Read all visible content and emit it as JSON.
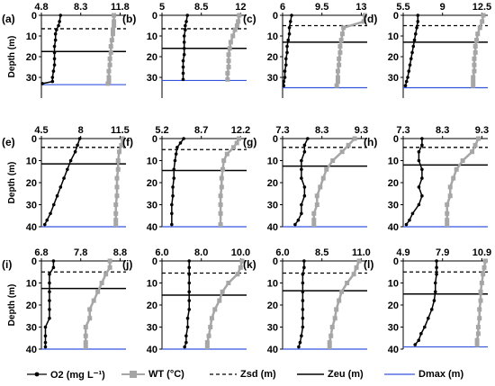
{
  "legend": {
    "o2": "O₂ (mg L⁻¹)",
    "wt": "WT (°C)",
    "zsd": "Zₛₑ (m)",
    "zeu": "Zₑᵤ (m)",
    "dmax": "Dₘₐₓ (m)"
  },
  "legend_labels": {
    "o2": "O2 (mg L⁻¹)",
    "wt": "WT (°C)",
    "zsd": "Zsd (m)",
    "zeu": "Zeu (m)",
    "dmax": "Dmax (m)"
  },
  "colors": {
    "o2": "#000000",
    "wt": "#a6a6a6",
    "zsd": "#000000",
    "zeu": "#000000",
    "dmax": "#3355dd"
  },
  "y_axis_label": "Depth (m)",
  "chart_data": [
    {
      "panel": "(a)",
      "type": "line",
      "xticks": [
        "4.8",
        "8.3",
        "11.8"
      ],
      "xlim": [
        4.8,
        13.2
      ],
      "ylim": [
        0,
        40
      ],
      "ylabel": "Depth (m)",
      "zsd": 6.5,
      "zeu": 17.5,
      "dmax": 33.5,
      "yticks": [
        "0",
        "10",
        "20",
        "30"
      ],
      "series": [
        {
          "name": "O2 (mg L⁻¹)",
          "x": [
            6.7,
            6.6,
            6.5,
            6.3,
            6.2,
            6.2,
            6.1,
            6.1,
            6.1,
            6.1,
            6.0,
            5.9,
            5.9,
            4.9
          ],
          "y": [
            0,
            3,
            5,
            7,
            9,
            12,
            15,
            18,
            21,
            24,
            27,
            30,
            32,
            33
          ]
        },
        {
          "name": "WT (°C)",
          "x": [
            12.0,
            12.0,
            12.0,
            11.9,
            11.9,
            11.8,
            11.7,
            11.7,
            11.6,
            11.6,
            11.5,
            11.5,
            11.5,
            11.4
          ],
          "y": [
            0,
            3,
            5,
            7,
            9,
            12,
            15,
            18,
            21,
            24,
            27,
            30,
            32,
            33
          ]
        }
      ]
    },
    {
      "panel": "(b)",
      "type": "line",
      "xticks": [
        "5",
        "8.5",
        "12"
      ],
      "xlim": [
        5,
        13
      ],
      "ylim": [
        0,
        40
      ],
      "ylabel": "",
      "zsd": 6.5,
      "zeu": 16,
      "dmax": 31.5,
      "yticks": [
        "0",
        "10",
        "20",
        "30"
      ],
      "series": [
        {
          "name": "O2 (mg L⁻¹)",
          "x": [
            7.4,
            7.3,
            7.2,
            7.2,
            7.1,
            7.1,
            7.1,
            7.1,
            7.0,
            7.0,
            7.0,
            7.0
          ],
          "y": [
            0,
            3,
            5,
            7,
            10,
            13,
            16,
            19,
            22,
            25,
            28,
            31
          ]
        },
        {
          "name": "WT (°C)",
          "x": [
            12.3,
            12.2,
            12.1,
            11.9,
            11.7,
            11.5,
            11.4,
            11.3,
            11.3,
            11.3,
            11.2,
            11.2
          ],
          "y": [
            0,
            3,
            5,
            7,
            10,
            13,
            16,
            19,
            22,
            25,
            28,
            31
          ]
        }
      ]
    },
    {
      "panel": "(c)",
      "type": "line",
      "xticks": [
        "6",
        "9.5",
        "13"
      ],
      "xlim": [
        6,
        13.5
      ],
      "ylim": [
        0,
        40
      ],
      "ylabel": "",
      "zsd": 5,
      "zeu": 13,
      "dmax": 35,
      "yticks": [
        "0",
        "10",
        "20",
        "30"
      ],
      "series": [
        {
          "name": "O2 (mg L⁻¹)",
          "x": [
            6.8,
            6.7,
            6.6,
            6.6,
            6.5,
            6.4,
            6.4,
            6.3,
            6.3,
            6.2,
            6.2,
            6.1,
            6.1
          ],
          "y": [
            0,
            3,
            6,
            9,
            12,
            15,
            18,
            21,
            24,
            27,
            30,
            32,
            34
          ]
        },
        {
          "name": "WT (°C)",
          "x": [
            13.3,
            13.2,
            11.4,
            11.3,
            11.2,
            11.1,
            11.1,
            11.0,
            11.0,
            10.9,
            10.9,
            10.9,
            10.8
          ],
          "y": [
            0,
            3,
            6,
            9,
            12,
            15,
            18,
            21,
            24,
            27,
            30,
            32,
            34
          ]
        }
      ]
    },
    {
      "panel": "(d)",
      "type": "line",
      "xticks": [
        "5.5",
        "9",
        "12.5"
      ],
      "xlim": [
        5.5,
        13
      ],
      "ylim": [
        0,
        40
      ],
      "ylabel": "",
      "zsd": 5,
      "zeu": 13,
      "dmax": 35,
      "yticks": [
        "0",
        "10",
        "20",
        "30"
      ],
      "series": [
        {
          "name": "O2 (mg L⁻¹)",
          "x": [
            6.8,
            6.8,
            6.7,
            6.6,
            6.5,
            6.4,
            6.3,
            6.2,
            6.1,
            6.0,
            5.9,
            5.8,
            5.7
          ],
          "y": [
            0,
            3,
            6,
            9,
            12,
            15,
            18,
            21,
            24,
            27,
            30,
            32,
            34
          ]
        },
        {
          "name": "WT (°C)",
          "x": [
            12.6,
            12.5,
            12.3,
            12.1,
            12.0,
            11.9,
            11.9,
            11.8,
            11.8,
            11.8,
            11.7,
            11.7,
            11.7
          ],
          "y": [
            0,
            3,
            6,
            9,
            12,
            15,
            18,
            21,
            24,
            27,
            30,
            32,
            34
          ]
        }
      ]
    },
    {
      "panel": "(e)",
      "type": "line",
      "xticks": [
        "4.5",
        "8",
        "11.5"
      ],
      "xlim": [
        4.5,
        12
      ],
      "ylim": [
        0,
        40
      ],
      "ylabel": "Depth (m)",
      "zsd": 4,
      "zeu": 11.5,
      "dmax": 40,
      "yticks": [
        "0",
        "10",
        "20",
        "30",
        "40"
      ],
      "series": [
        {
          "name": "O2 (mg L⁻¹)",
          "x": [
            7.9,
            7.7,
            7.5,
            7.1,
            6.8,
            6.5,
            6.2,
            5.9,
            5.6,
            5.3,
            5.0,
            4.8
          ],
          "y": [
            0,
            3,
            6,
            10,
            14,
            18,
            22,
            26,
            30,
            34,
            37,
            39
          ]
        },
        {
          "name": "WT (°C)",
          "x": [
            11.7,
            11.6,
            11.4,
            11.3,
            11.3,
            11.2,
            11.2,
            11.2,
            11.1,
            11.1,
            11.1,
            11.1
          ],
          "y": [
            0,
            3,
            6,
            10,
            14,
            18,
            22,
            26,
            30,
            34,
            37,
            39
          ]
        }
      ]
    },
    {
      "panel": "(f)",
      "type": "line",
      "xticks": [
        "5.2",
        "8.7",
        "12.2"
      ],
      "xlim": [
        5.2,
        13
      ],
      "ylim": [
        0,
        40
      ],
      "ylabel": "",
      "zsd": 5,
      "zeu": 14.5,
      "dmax": 40,
      "yticks": [
        "0",
        "10",
        "20",
        "30",
        "40"
      ],
      "series": [
        {
          "name": "O2 (mg L⁻¹)",
          "x": [
            7.2,
            6.9,
            6.6,
            6.5,
            6.4,
            6.3,
            6.3,
            6.2,
            6.2,
            6.1,
            6.1,
            6.1
          ],
          "y": [
            0,
            2,
            4,
            7,
            10,
            14,
            18,
            22,
            26,
            30,
            34,
            39
          ]
        },
        {
          "name": "WT (°C)",
          "x": [
            12.3,
            12.1,
            11.8,
            11.2,
            10.9,
            10.8,
            10.7,
            10.7,
            10.6,
            10.6,
            10.6,
            10.6
          ],
          "y": [
            0,
            2,
            4,
            7,
            10,
            14,
            18,
            22,
            26,
            30,
            34,
            39
          ]
        }
      ]
    },
    {
      "panel": "(g)",
      "type": "line",
      "xticks": [
        "7.3",
        "8.3",
        "9.3"
      ],
      "xlim": [
        7.3,
        10
      ],
      "ylim": [
        0,
        40
      ],
      "ylabel": "",
      "zsd": 4,
      "zeu": 12.5,
      "dmax": 40,
      "yticks": [
        "0",
        "10",
        "20",
        "30",
        "40"
      ],
      "series": [
        {
          "name": "O2 (mg L⁻¹)",
          "x": [
            8.1,
            8.0,
            8.0,
            7.9,
            7.9,
            7.9,
            8.0,
            8.0,
            7.9,
            7.9,
            7.8,
            7.7
          ],
          "y": [
            0,
            3,
            6,
            10,
            14,
            18,
            22,
            26,
            30,
            34,
            37,
            39
          ]
        },
        {
          "name": "WT (°C)",
          "x": [
            9.6,
            9.4,
            9.2,
            8.9,
            8.7,
            8.6,
            8.5,
            8.4,
            8.4,
            8.3,
            8.3,
            8.3
          ],
          "y": [
            0,
            3,
            6,
            10,
            14,
            18,
            22,
            26,
            30,
            34,
            37,
            39
          ]
        }
      ]
    },
    {
      "panel": "(h)",
      "type": "line",
      "xticks": [
        "7.3",
        "8.3",
        "9.3"
      ],
      "xlim": [
        7.3,
        10
      ],
      "ylim": [
        0,
        40
      ],
      "ylabel": "",
      "zsd": 4,
      "zeu": 12,
      "dmax": 40,
      "yticks": [
        "0",
        "10",
        "20",
        "30",
        "40"
      ],
      "series": [
        {
          "name": "O2 (mg L⁻¹)",
          "x": [
            7.9,
            7.9,
            7.8,
            7.8,
            7.9,
            7.9,
            7.8,
            7.9,
            7.8,
            7.6,
            7.5,
            7.4
          ],
          "y": [
            0,
            3,
            6,
            10,
            14,
            18,
            22,
            26,
            30,
            34,
            37,
            39
          ]
        },
        {
          "name": "WT (°C)",
          "x": [
            9.7,
            9.6,
            9.5,
            9.2,
            9.0,
            8.9,
            8.8,
            8.8,
            8.7,
            8.7,
            8.7,
            8.7
          ],
          "y": [
            0,
            3,
            6,
            10,
            14,
            18,
            22,
            26,
            30,
            34,
            37,
            39
          ]
        }
      ]
    },
    {
      "panel": "(i)",
      "type": "line",
      "xticks": [
        "6.8",
        "7.8",
        "8.8"
      ],
      "xlim": [
        6.8,
        8.9
      ],
      "ylim": [
        0,
        40
      ],
      "ylabel": "Depth (m)",
      "zsd": 5,
      "zeu": 12.5,
      "dmax": 40,
      "yticks": [
        "0",
        "10",
        "20",
        "30",
        "40"
      ],
      "series": [
        {
          "name": "O2 (mg L⁻¹)",
          "x": [
            7.1,
            7.1,
            7.0,
            7.0,
            7.0,
            7.0,
            7.0,
            7.0,
            6.9,
            6.9,
            6.9,
            6.9
          ],
          "y": [
            0,
            3,
            6,
            10,
            14,
            18,
            22,
            26,
            30,
            34,
            37,
            39
          ]
        },
        {
          "name": "WT (°C)",
          "x": [
            8.5,
            8.5,
            8.4,
            8.3,
            8.2,
            8.1,
            8.0,
            8.0,
            7.9,
            7.9,
            7.9,
            7.9
          ],
          "y": [
            0,
            3,
            6,
            10,
            14,
            18,
            22,
            26,
            30,
            34,
            37,
            39
          ]
        }
      ]
    },
    {
      "panel": "(j)",
      "type": "line",
      "xticks": [
        "6.0",
        "8.0",
        "10.0"
      ],
      "xlim": [
        6.0,
        11.6
      ],
      "ylim": [
        0,
        40
      ],
      "ylabel": "",
      "zsd": 5.5,
      "zeu": 15.5,
      "dmax": 40,
      "yticks": [
        "0",
        "10",
        "20",
        "30",
        "40"
      ],
      "series": [
        {
          "name": "O2 (mg L⁻¹)",
          "x": [
            7.8,
            7.8,
            7.8,
            7.8,
            7.8,
            7.8,
            7.8,
            7.7,
            7.7,
            7.6,
            7.6,
            7.5
          ],
          "y": [
            0,
            3,
            6,
            10,
            14,
            18,
            22,
            26,
            30,
            34,
            37,
            39
          ]
        },
        {
          "name": "WT (°C)",
          "x": [
            11.3,
            11.2,
            11.0,
            10.4,
            10.0,
            9.8,
            9.5,
            9.3,
            9.2,
            9.1,
            9.0,
            9.0
          ],
          "y": [
            0,
            3,
            6,
            10,
            14,
            18,
            22,
            26,
            30,
            34,
            37,
            39
          ]
        }
      ]
    },
    {
      "panel": "(k)",
      "type": "line",
      "xticks": [
        "6.0",
        "8.5",
        "11.0"
      ],
      "xlim": [
        6.0,
        12.3
      ],
      "ylim": [
        0,
        40
      ],
      "ylabel": "",
      "zsd": 5.5,
      "zeu": 13.5,
      "dmax": 40,
      "yticks": [
        "0",
        "10",
        "20",
        "30",
        "40"
      ],
      "series": [
        {
          "name": "O2 (mg L⁻¹)",
          "x": [
            7.6,
            7.6,
            7.5,
            7.5,
            7.5,
            7.5,
            7.5,
            7.5,
            7.5,
            7.4,
            7.3,
            7.2
          ],
          "y": [
            0,
            3,
            6,
            10,
            14,
            18,
            22,
            26,
            30,
            34,
            37,
            39
          ]
        },
        {
          "name": "WT (°C)",
          "x": [
            11.7,
            11.5,
            11.3,
            10.8,
            10.4,
            10.2,
            10.0,
            9.9,
            9.7,
            9.6,
            9.5,
            9.5
          ],
          "y": [
            0,
            3,
            6,
            10,
            14,
            18,
            22,
            26,
            30,
            34,
            37,
            39
          ]
        }
      ]
    },
    {
      "panel": "(l)",
      "type": "line",
      "xticks": [
        "4.9",
        "7.9",
        "10.9"
      ],
      "xlim": [
        4.9,
        12.0
      ],
      "ylim": [
        0,
        40
      ],
      "ylabel": "",
      "zsd": 5,
      "zeu": 15,
      "dmax": 39,
      "yticks": [
        "0",
        "10",
        "20",
        "30",
        "40"
      ],
      "series": [
        {
          "name": "O2 (mg L⁻¹)",
          "x": [
            7.7,
            7.7,
            7.7,
            7.6,
            7.6,
            7.5,
            7.3,
            7.0,
            6.7,
            6.4,
            6.2,
            5.9
          ],
          "y": [
            0,
            3,
            6,
            10,
            14,
            18,
            22,
            26,
            30,
            33,
            36,
            38
          ]
        },
        {
          "name": "WT (°C)",
          "x": [
            11.8,
            11.7,
            11.6,
            11.5,
            11.4,
            11.4,
            11.3,
            11.3,
            11.2,
            11.2,
            11.1,
            11.1
          ],
          "y": [
            0,
            3,
            6,
            10,
            14,
            18,
            22,
            26,
            30,
            33,
            36,
            38
          ]
        }
      ]
    }
  ]
}
